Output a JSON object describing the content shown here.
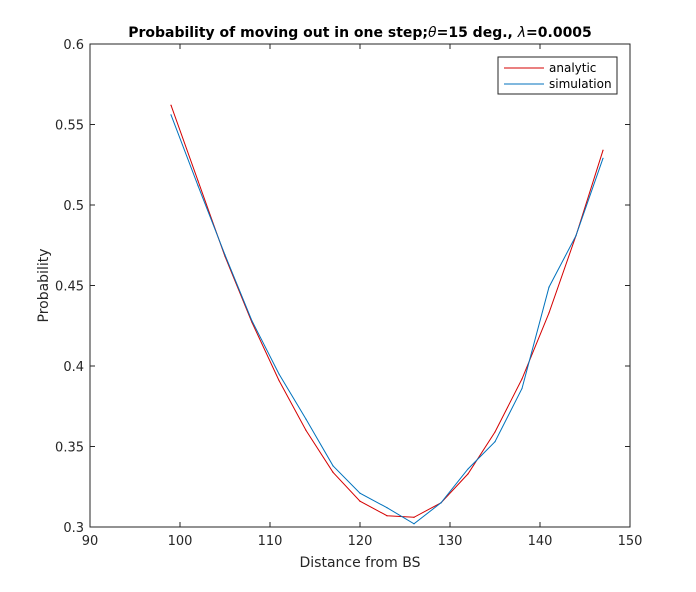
{
  "chart_data": {
    "type": "line",
    "title": "Probability of moving out in one step;θ=15 deg., λ=0.0005",
    "title_parts": {
      "prefix": "Probability of moving out in one step;",
      "theta_symbol": "θ",
      "middle": "=15 deg., ",
      "lambda_symbol": "λ",
      "suffix": "=0.0005"
    },
    "xlabel": "Distance from BS",
    "ylabel": "Probability",
    "xlim": [
      90,
      150
    ],
    "ylim": [
      0.3,
      0.6
    ],
    "xticks": [
      90,
      100,
      110,
      120,
      130,
      140,
      150
    ],
    "xtick_labels": [
      "90",
      "100",
      "110",
      "120",
      "130",
      "140",
      "150"
    ],
    "yticks": [
      0.3,
      0.35,
      0.4,
      0.45,
      0.5,
      0.55,
      0.6
    ],
    "ytick_labels": [
      "0.3",
      "0.35",
      "0.4",
      "0.45",
      "0.5",
      "0.55",
      "0.6"
    ],
    "grid": false,
    "legend_position": "top-right",
    "series": [
      {
        "name": "analytic",
        "color": "#d40000",
        "x": [
          99,
          102,
          105,
          108,
          111,
          114,
          117,
          120,
          123,
          126,
          129,
          132,
          135,
          138,
          141,
          144,
          147
        ],
        "y": [
          0.562,
          0.515,
          0.468,
          0.427,
          0.391,
          0.36,
          0.334,
          0.316,
          0.307,
          0.306,
          0.315,
          0.333,
          0.359,
          0.392,
          0.433,
          0.481,
          0.534
        ]
      },
      {
        "name": "simulation",
        "color": "#0072bd",
        "x": [
          99,
          102,
          105,
          108,
          111,
          114,
          117,
          120,
          123,
          126,
          129,
          132,
          135,
          138,
          141,
          144,
          147
        ],
        "y": [
          0.556,
          0.512,
          0.469,
          0.428,
          0.395,
          0.367,
          0.338,
          0.321,
          0.312,
          0.302,
          0.315,
          0.336,
          0.353,
          0.386,
          0.449,
          0.481,
          0.529
        ]
      }
    ]
  }
}
